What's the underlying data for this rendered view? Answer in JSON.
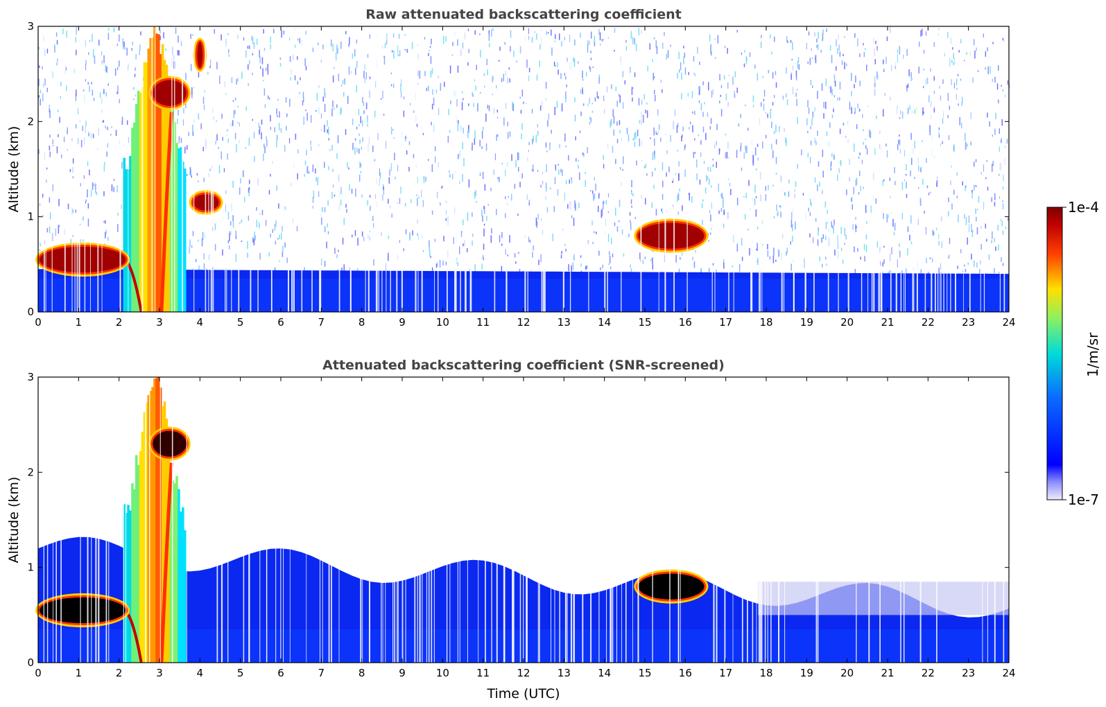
{
  "chart_data": [
    {
      "type": "heatmap",
      "title": "Raw attenuated backscattering coefficient",
      "xlabel": "",
      "ylabel": "Altitude (km)",
      "xlim": [
        0,
        24
      ],
      "ylim": [
        0,
        3
      ],
      "xticks": [
        "0",
        "1",
        "2",
        "3",
        "4",
        "5",
        "6",
        "7",
        "8",
        "9",
        "10",
        "11",
        "12",
        "13",
        "14",
        "15",
        "16",
        "17",
        "18",
        "19",
        "20",
        "21",
        "22",
        "23",
        "24"
      ],
      "yticks": [
        "0",
        "1",
        "2",
        "3"
      ],
      "features": [
        {
          "name": "boundary-layer",
          "x": [
            0,
            24
          ],
          "y_top_km": [
            0.45,
            0.4
          ],
          "level": "low"
        },
        {
          "name": "low-cloud-layer",
          "x": [
            0,
            2.2
          ],
          "y_km": [
            0.4,
            0.7
          ],
          "level": "high"
        },
        {
          "name": "dust-plume",
          "x": [
            2.1,
            3.6
          ],
          "y_km": [
            0,
            3
          ],
          "level": "medium-high"
        },
        {
          "name": "cloud-2.3km",
          "x": [
            2.8,
            3.7
          ],
          "y_km": [
            2.15,
            2.45
          ],
          "level": "high"
        },
        {
          "name": "cloud-1.1km",
          "x": [
            3.8,
            4.5
          ],
          "y_km": [
            1.05,
            1.25
          ],
          "level": "high"
        },
        {
          "name": "cloud-2.6km",
          "x": [
            3.9,
            4.1
          ],
          "y_km": [
            2.55,
            2.85
          ],
          "level": "high"
        },
        {
          "name": "cloud-0.8km",
          "x": [
            14.8,
            16.5
          ],
          "y_km": [
            0.65,
            0.95
          ],
          "level": "high"
        }
      ]
    },
    {
      "type": "heatmap",
      "title": "Attenuated backscattering coefficient (SNR-screened)",
      "xlabel": "Time (UTC)",
      "ylabel": "Altitude (km)",
      "xlim": [
        0,
        24
      ],
      "ylim": [
        0,
        3
      ],
      "xticks": [
        "0",
        "1",
        "2",
        "3",
        "4",
        "5",
        "6",
        "7",
        "8",
        "9",
        "10",
        "11",
        "12",
        "13",
        "14",
        "15",
        "16",
        "17",
        "18",
        "19",
        "20",
        "21",
        "22",
        "23",
        "24"
      ],
      "yticks": [
        "0",
        "1",
        "2",
        "3"
      ],
      "features": [
        {
          "name": "boundary-layer",
          "x": [
            0,
            24
          ],
          "y_top_km": [
            1.2,
            0.6
          ],
          "level": "low"
        },
        {
          "name": "low-cloud-layer",
          "x": [
            0,
            2.2
          ],
          "y_km": [
            0.4,
            0.7
          ],
          "level": "saturated"
        },
        {
          "name": "dust-plume",
          "x": [
            2.1,
            3.6
          ],
          "y_km": [
            0,
            3
          ],
          "level": "medium-high"
        },
        {
          "name": "cloud-2.3km",
          "x": [
            2.8,
            3.7
          ],
          "y_km": [
            2.15,
            2.45
          ],
          "level": "high"
        },
        {
          "name": "cloud-0.8km",
          "x": [
            14.8,
            16.5
          ],
          "y_km": [
            0.65,
            0.95
          ],
          "level": "saturated"
        }
      ]
    }
  ],
  "colorbar": {
    "label": "1/m/sr",
    "max_label": "1e-4",
    "min_label": "1e-7",
    "scale": "log",
    "range": [
      1e-07,
      0.0001
    ],
    "colors": [
      "#e8e8f8",
      "#0000ff",
      "#00d5ff",
      "#f0ff00",
      "#ff3300",
      "#800000"
    ]
  }
}
